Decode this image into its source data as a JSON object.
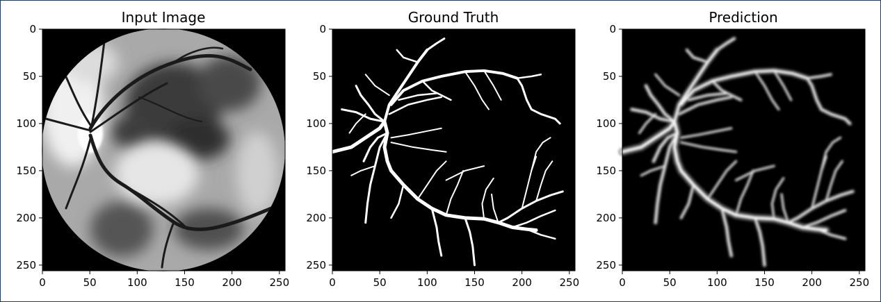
{
  "figure": {
    "panels": [
      {
        "title": "Input Image",
        "kind": "fundus"
      },
      {
        "title": "Ground Truth",
        "kind": "mask"
      },
      {
        "title": "Prediction",
        "kind": "prediction"
      }
    ]
  },
  "axes": {
    "x_ticks": [
      "0",
      "50",
      "100",
      "150",
      "200",
      "250"
    ],
    "y_ticks": [
      "0",
      "50",
      "100",
      "150",
      "200",
      "250"
    ],
    "xlim": [
      0,
      256
    ],
    "ylim": [
      256,
      0
    ],
    "tick_values": [
      0,
      50,
      100,
      150,
      200,
      250
    ]
  },
  "colors": {
    "image_background": "#000000",
    "vessel_mask": "#ffffff",
    "fundus_base": "#a9a9a9",
    "frame_border": "#1f3a5a"
  }
}
